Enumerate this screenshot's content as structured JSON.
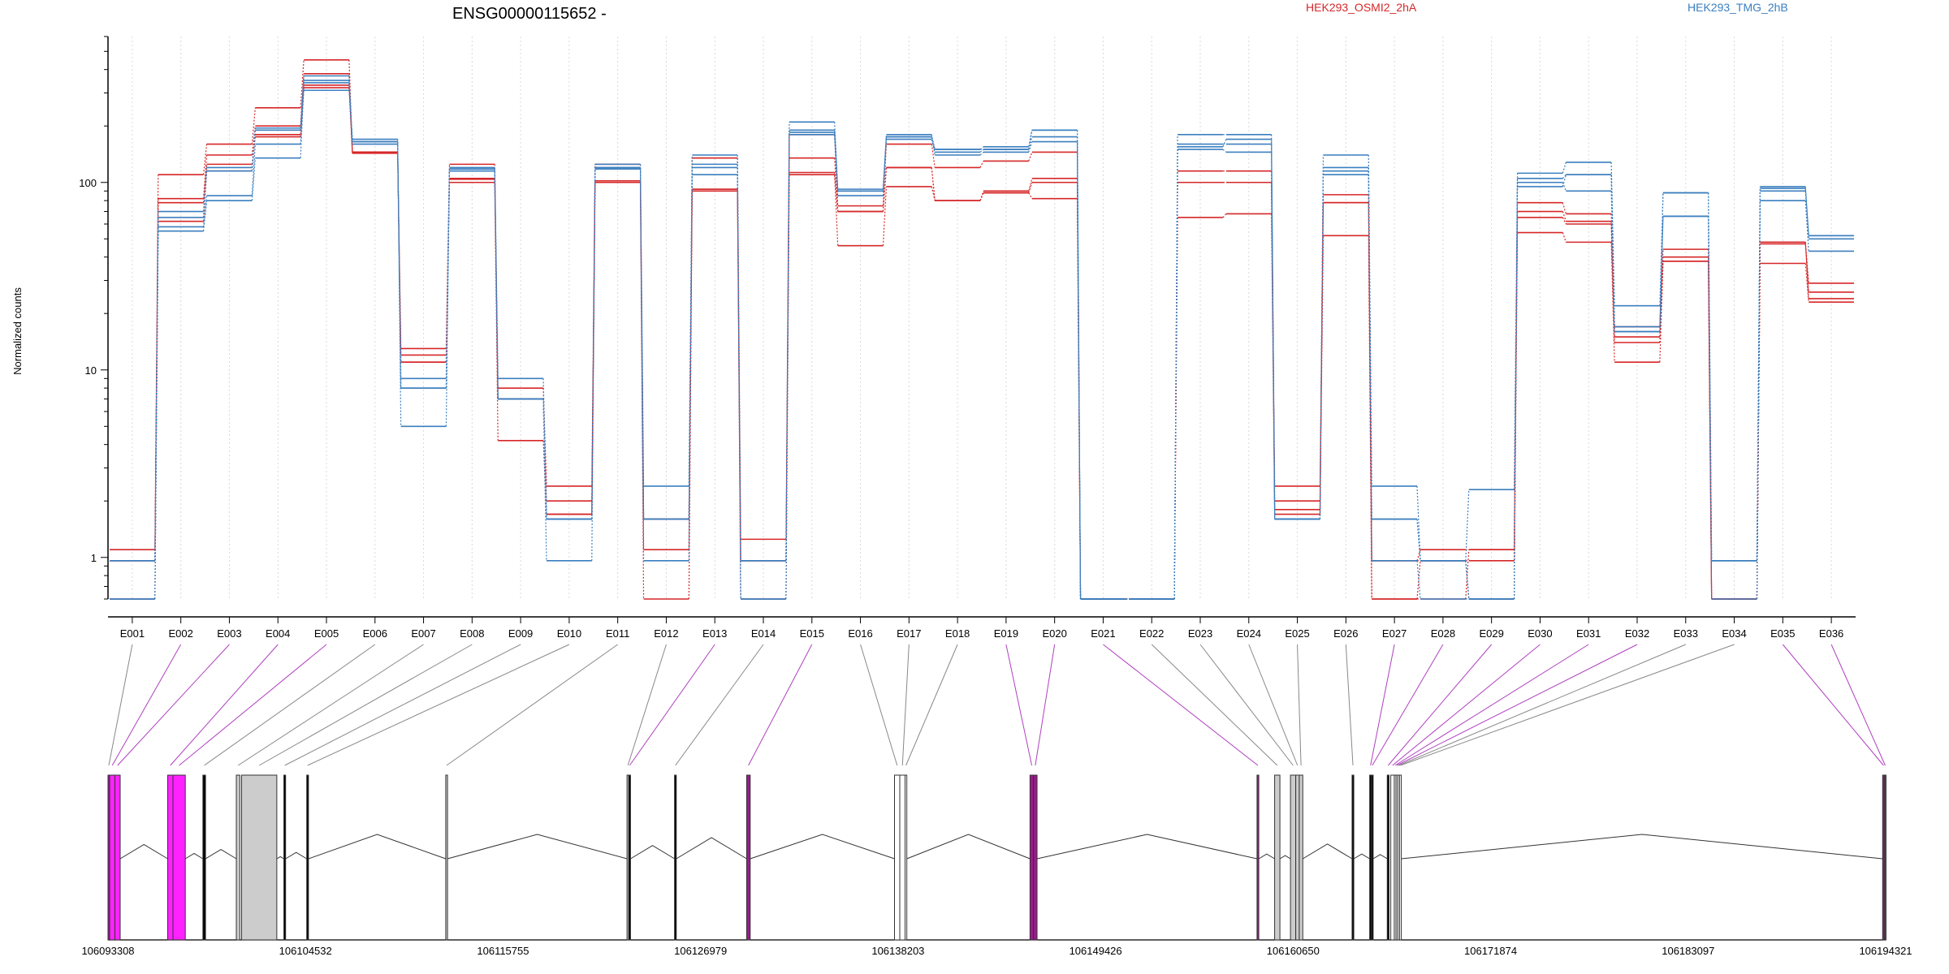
{
  "chart_data": {
    "type": "line",
    "title": "ENSG00000115652 -",
    "ylabel": "Normalized counts",
    "xlabel": "",
    "y_scale": "log",
    "ylim": [
      0.6,
      600
    ],
    "y_ticks": [
      1,
      10,
      100
    ],
    "y_tick_labels": [
      "1",
      "10",
      "100"
    ],
    "categories": [
      "E001",
      "E002",
      "E003",
      "E004",
      "E005",
      "E006",
      "E007",
      "E008",
      "E009",
      "E010",
      "E011",
      "E012",
      "E013",
      "E014",
      "E015",
      "E016",
      "E017",
      "E018",
      "E019",
      "E020",
      "E021",
      "E022",
      "E023",
      "E024",
      "E025",
      "E026",
      "E027",
      "E028",
      "E029",
      "E030",
      "E031",
      "E032",
      "E033",
      "E034",
      "E035",
      "E036"
    ],
    "legend": [
      {
        "name": "HEK293_OSMI2_2hA",
        "color": "#d62728"
      },
      {
        "name": "HEK293_TMG_2hB",
        "color": "#3b7fbf"
      }
    ],
    "floor_value": 0.6,
    "series": [
      {
        "group": "HEK293_OSMI2_2hA",
        "color": "#d62728",
        "values": [
          1.1,
          110,
          160,
          250,
          450,
          145,
          13,
          125,
          8,
          2.4,
          125,
          1.6,
          135,
          1.25,
          180,
          75,
          160,
          120,
          130,
          145,
          0.6,
          0.6,
          115,
          115,
          2.4,
          86,
          0.96,
          1.1,
          1.1,
          78,
          68,
          17,
          44,
          0.6,
          48,
          29
        ]
      },
      {
        "group": "HEK293_OSMI2_2hA",
        "color": "#d62728",
        "values": [
          0.96,
          82,
          140,
          200,
          380,
          143,
          12,
          105,
          7,
          2,
          100,
          1.1,
          92,
          0.96,
          135,
          70,
          120,
          80,
          90,
          105,
          0.6,
          0.6,
          100,
          100,
          2,
          78,
          0.6,
          0.96,
          0.96,
          70,
          62,
          14,
          40,
          0.6,
          47,
          26
        ]
      },
      {
        "group": "HEK293_OSMI2_2hA",
        "color": "#d62728",
        "values": [
          0.6,
          62,
          115,
          180,
          320,
          145,
          11,
          100,
          4.2,
          1.7,
          102,
          0.6,
          90,
          0.6,
          113,
          46,
          95,
          80,
          88,
          82,
          0.6,
          0.6,
          65,
          68,
          1.7,
          52,
          0.6,
          0.6,
          1.1,
          54,
          48,
          11,
          38,
          0.6,
          37,
          23
        ]
      },
      {
        "group": "HEK293_OSMI2_2hA",
        "color": "#d62728",
        "values": [
          0.96,
          78,
          125,
          175,
          330,
          145,
          11,
          104,
          7,
          1.7,
          100,
          1.6,
          92,
          0.96,
          110,
          70,
          120,
          80,
          88,
          100,
          0.6,
          0.6,
          100,
          100,
          1.8,
          78,
          0.96,
          0.96,
          0.6,
          65,
          60,
          15,
          38,
          0.6,
          48,
          24
        ]
      },
      {
        "group": "HEK293_TMG_2hB",
        "color": "#3b7fbf",
        "values": [
          0.96,
          58,
          85,
          160,
          310,
          165,
          9,
          120,
          9,
          1.6,
          125,
          2.4,
          140,
          0.96,
          210,
          92,
          180,
          150,
          155,
          190,
          0.6,
          0.6,
          180,
          180,
          1.6,
          140,
          2.4,
          0.96,
          2.3,
          112,
          128,
          22,
          88,
          0.96,
          95,
          52
        ]
      },
      {
        "group": "HEK293_TMG_2hB",
        "color": "#3b7fbf",
        "values": [
          0.6,
          55,
          80,
          135,
          340,
          170,
          8,
          115,
          7,
          0.96,
          120,
          0.96,
          125,
          0.6,
          185,
          85,
          170,
          145,
          150,
          190,
          0.6,
          0.6,
          160,
          160,
          1.6,
          115,
          1.6,
          0.96,
          0.6,
          95,
          110,
          17,
          66,
          0.96,
          90,
          50
        ]
      },
      {
        "group": "HEK293_TMG_2hB",
        "color": "#3b7fbf",
        "values": [
          0.6,
          70,
          115,
          195,
          370,
          160,
          5,
          115,
          7,
          1.6,
          118,
          1.6,
          110,
          0.6,
          180,
          90,
          175,
          140,
          145,
          165,
          0.6,
          0.6,
          150,
          145,
          1.6,
          110,
          0.96,
          0.6,
          0.6,
          100,
          90,
          16,
          66,
          0.6,
          80,
          43
        ]
      },
      {
        "group": "HEK293_TMG_2hB",
        "color": "#3b7fbf",
        "values": [
          0.96,
          65,
          120,
          190,
          350,
          165,
          8,
          118,
          7,
          1.6,
          120,
          1.6,
          120,
          0.96,
          190,
          90,
          175,
          150,
          150,
          175,
          0.6,
          0.6,
          155,
          170,
          1.6,
          120,
          1.6,
          0.96,
          0.6,
          105,
          110,
          16,
          88,
          0.96,
          93,
          52
        ]
      }
    ],
    "gene_model": {
      "coordinate_ticks": [
        "106093308",
        "106104532",
        "106115755",
        "106126979",
        "106138203",
        "106149426",
        "106160650",
        "106171874",
        "106183097",
        "106194321"
      ],
      "coordinate_range": [
        106093308,
        106194321
      ],
      "exons": [
        {
          "id": "E001",
          "start": 106093308,
          "end": 106093400,
          "fill": "#9c1b8c",
          "link": "#888888"
        },
        {
          "id": "E002",
          "start": 106093400,
          "end": 106093700,
          "fill": "#ff22ff",
          "link": "#b040c0"
        },
        {
          "id": "E003",
          "start": 106093700,
          "end": 106094000,
          "fill": "#ff22ff",
          "link": "#b040c0"
        },
        {
          "id": "E004",
          "start": 106096700,
          "end": 106097000,
          "fill": "#ff22ff",
          "link": "#b040c0"
        },
        {
          "id": "E005",
          "start": 106097000,
          "end": 106097700,
          "fill": "#ff22ff",
          "link": "#b040c0"
        },
        {
          "id": "E006",
          "start": 106098700,
          "end": 106098850,
          "fill": "#000000",
          "link": "#888888"
        },
        {
          "id": "E007",
          "start": 106100600,
          "end": 106100800,
          "fill": "#cccccc",
          "link": "#888888"
        },
        {
          "id": "E008",
          "start": 106100900,
          "end": 106102900,
          "fill": "#cccccc",
          "link": "#888888"
        },
        {
          "id": "E009",
          "start": 106103300,
          "end": 106103400,
          "fill": "#000000",
          "link": "#888888"
        },
        {
          "id": "E010",
          "start": 106104600,
          "end": 106104700,
          "fill": "#000000",
          "link": "#888888"
        },
        {
          "id": "E011",
          "start": 106112500,
          "end": 106112600,
          "fill": "#cccccc",
          "link": "#888888"
        },
        {
          "id": "E012",
          "start": 106122800,
          "end": 106122900,
          "fill": "#cccccc",
          "link": "#888888"
        },
        {
          "id": "E013",
          "start": 106122900,
          "end": 106123000,
          "fill": "#000000",
          "link": "#b040c0"
        },
        {
          "id": "E014",
          "start": 106125500,
          "end": 106125600,
          "fill": "#000000",
          "link": "#888888"
        },
        {
          "id": "E015",
          "start": 106129600,
          "end": 106129800,
          "fill": "#9c1b8c",
          "link": "#b040c0"
        },
        {
          "id": "E016",
          "start": 106138000,
          "end": 106138300,
          "fill": "#ffffff",
          "link": "#888888"
        },
        {
          "id": "E017",
          "start": 106138300,
          "end": 106138600,
          "fill": "#ffffff",
          "link": "#888888"
        },
        {
          "id": "E018",
          "start": 106138600,
          "end": 106138700,
          "fill": "#ffffff",
          "link": "#888888"
        },
        {
          "id": "E019",
          "start": 106145700,
          "end": 106145900,
          "fill": "#9c1b8c",
          "link": "#b040c0"
        },
        {
          "id": "E020",
          "start": 106145900,
          "end": 106146100,
          "fill": "#9c1b8c",
          "link": "#b040c0"
        },
        {
          "id": "E021",
          "start": 106158600,
          "end": 106158700,
          "fill": "#9c1b8c",
          "link": "#b040c0"
        },
        {
          "id": "E022",
          "start": 106159600,
          "end": 106159900,
          "fill": "#cccccc",
          "link": "#888888"
        },
        {
          "id": "E023",
          "start": 106160500,
          "end": 106160800,
          "fill": "#cccccc",
          "link": "#888888"
        },
        {
          "id": "E024",
          "start": 106160800,
          "end": 106161000,
          "fill": "#cccccc",
          "link": "#888888"
        },
        {
          "id": "E025",
          "start": 106161000,
          "end": 106161200,
          "fill": "#cccccc",
          "link": "#888888"
        },
        {
          "id": "E026",
          "start": 106164000,
          "end": 106164100,
          "fill": "#000000",
          "link": "#888888"
        },
        {
          "id": "E027",
          "start": 106165000,
          "end": 106165100,
          "fill": "#000000",
          "link": "#b040c0"
        },
        {
          "id": "E028",
          "start": 106165100,
          "end": 106165200,
          "fill": "#000000",
          "link": "#b040c0"
        },
        {
          "id": "E029",
          "start": 106166000,
          "end": 106166100,
          "fill": "#000000",
          "link": "#b040c0"
        },
        {
          "id": "E030",
          "start": 106166200,
          "end": 106166400,
          "fill": "#ffffff",
          "link": "#b040c0"
        },
        {
          "id": "E031",
          "start": 106166400,
          "end": 106166500,
          "fill": "#ffffff",
          "link": "#b040c0"
        },
        {
          "id": "E032",
          "start": 106166500,
          "end": 106166600,
          "fill": "#ffffff",
          "link": "#b040c0"
        },
        {
          "id": "E033",
          "start": 106166600,
          "end": 106166700,
          "fill": "#ffffff",
          "link": "#888888"
        },
        {
          "id": "E034",
          "start": 106166700,
          "end": 106166800,
          "fill": "#ffffff",
          "link": "#888888"
        },
        {
          "id": "E035",
          "start": 106194150,
          "end": 106194250,
          "fill": "#9c1b8c",
          "link": "#b040c0"
        },
        {
          "id": "E036",
          "start": 106194250,
          "end": 106194321,
          "fill": "#9c1b8c",
          "link": "#b040c0"
        }
      ]
    }
  }
}
